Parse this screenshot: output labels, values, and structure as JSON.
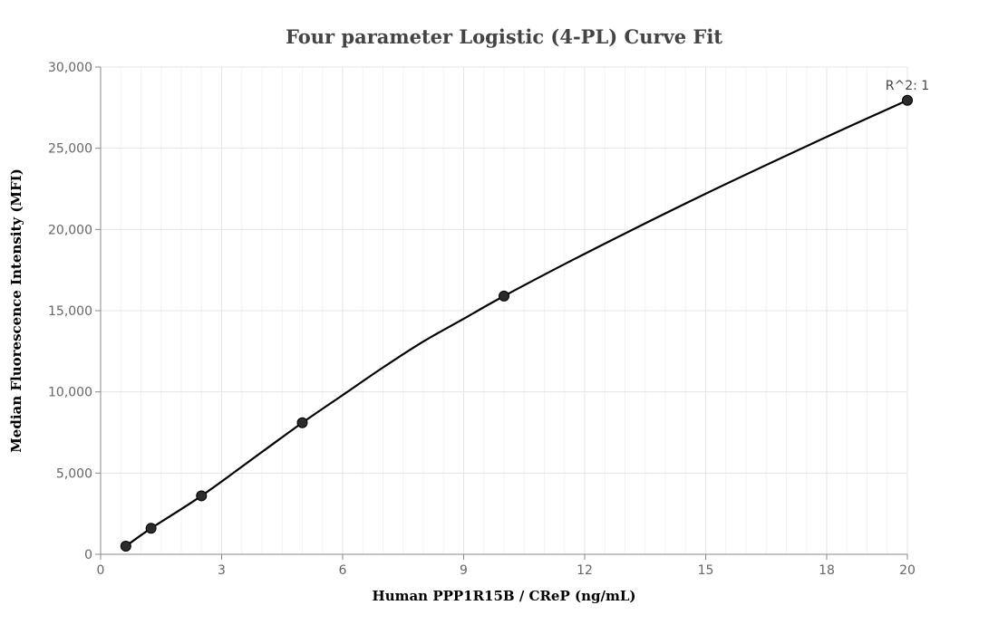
{
  "chart_data": {
    "type": "scatter",
    "title": "Four parameter Logistic (4-PL) Curve Fit",
    "xlabel": "Human PPP1R15B / CReP (ng/mL)",
    "ylabel": "Median Fluorescence Intensity (MFI)",
    "xlim": [
      0,
      20
    ],
    "ylim": [
      0,
      30000
    ],
    "x_ticks": [
      0,
      3,
      6,
      9,
      12,
      15,
      18,
      20
    ],
    "x_tick_labels": [
      "0",
      "3",
      "6",
      "9",
      "12",
      "15",
      "18",
      "20"
    ],
    "y_ticks": [
      0,
      5000,
      10000,
      15000,
      20000,
      25000,
      30000
    ],
    "y_tick_labels": [
      "0",
      "5,000",
      "10,000",
      "15,000",
      "20,000",
      "25,000",
      "30,000"
    ],
    "grid": true,
    "series": [
      {
        "type": "scatter",
        "color": "#2b2b2b",
        "x": [
          0.625,
          1.25,
          2.5,
          5,
          10,
          20
        ],
        "y": [
          500,
          1600,
          3600,
          8100,
          15900,
          27950
        ]
      },
      {
        "type": "line",
        "color": "#000000",
        "x": [
          0.625,
          1.25,
          2.5,
          4,
          5,
          6,
          7,
          8,
          9,
          10,
          12,
          15,
          18,
          20
        ],
        "y": [
          500,
          1600,
          3600,
          6300,
          8100,
          9800,
          11500,
          13100,
          14500,
          15900,
          18500,
          22200,
          25700,
          27950
        ]
      }
    ],
    "annotations": [
      {
        "text": "R^2: 1",
        "x": 20,
        "y": 27950
      }
    ]
  }
}
